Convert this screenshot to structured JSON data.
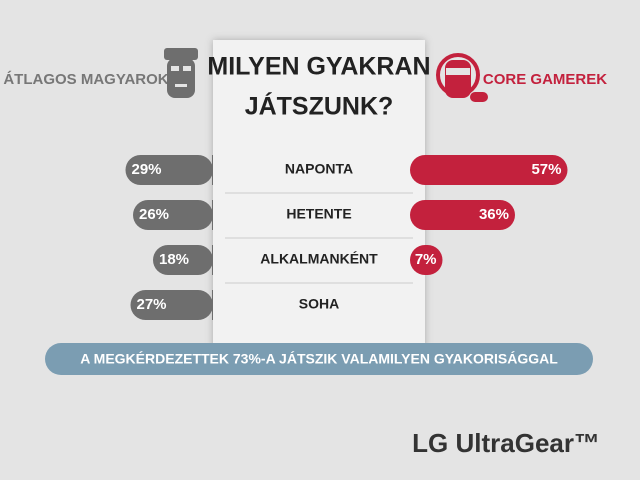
{
  "chart_data": {
    "type": "diverging_bar",
    "title": [
      "MILYEN GYAKRAN",
      "JÁTSZUNK?"
    ],
    "categories": [
      "NAPONTA",
      "HETENTE",
      "ALKALMANKÉNT",
      "SOHA"
    ],
    "series": [
      {
        "name": "ÁTLAGOS MAGYAROK",
        "color": "#6e6e6e",
        "values": [
          29,
          26,
          18,
          27
        ],
        "value_labels": [
          "29%",
          "26%",
          "18%",
          "27%"
        ]
      },
      {
        "name": "CORE GAMEREK",
        "color": "#c3213d",
        "values": [
          57,
          36,
          7,
          null
        ],
        "value_labels": [
          "57%",
          "36%",
          "7%",
          null
        ]
      }
    ],
    "note": "A MEGKÉRDEZETTEK 73%-A JÁTSZIK VALAMILYEN GYAKORISÁGGAL",
    "brand": "LG UltraGear™"
  }
}
